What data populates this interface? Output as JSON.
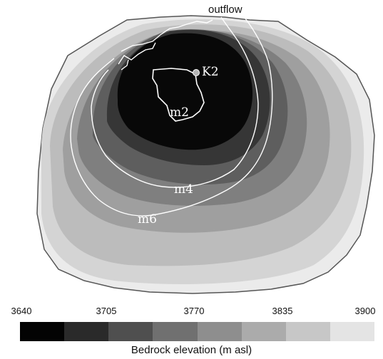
{
  "map": {
    "outflow_label": "outflow",
    "station_label": "K2",
    "contours": [
      {
        "name": "m2",
        "label": "m2"
      },
      {
        "name": "m4",
        "label": "m4"
      },
      {
        "name": "m6",
        "label": "m6"
      }
    ]
  },
  "legend": {
    "title": "Bedrock elevation (m asl)",
    "ticks": [
      "3640",
      "3705",
      "3770",
      "3835",
      "3900"
    ],
    "min": 3640,
    "max": 3900,
    "classes": 8,
    "colors": [
      "#030303",
      "#2a2a2a",
      "#4f4f4f",
      "#707070",
      "#8e8e8e",
      "#ababab",
      "#c7c7c7",
      "#e4e4e4"
    ]
  }
}
